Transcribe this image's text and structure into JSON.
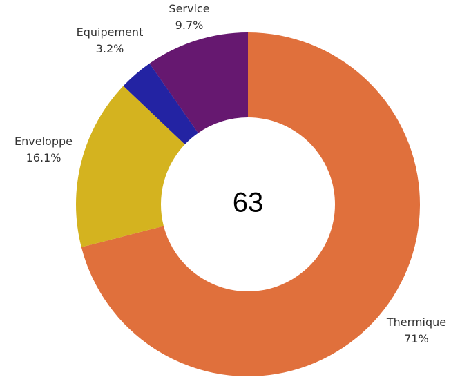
{
  "chart_data": {
    "type": "pie",
    "variant": "donut",
    "center_label": "63",
    "slices": [
      {
        "name": "Thermique",
        "value": 71,
        "label": "71%",
        "color": "#e0703c"
      },
      {
        "name": "Enveloppe",
        "value": 16.1,
        "label": "16.1%",
        "color": "#d4b31f"
      },
      {
        "name": "Equipement",
        "value": 3.2,
        "label": "3.2%",
        "color": "#2323a3"
      },
      {
        "name": "Service",
        "value": 9.7,
        "label": "9.7%",
        "color": "#661870"
      }
    ],
    "legend": "none"
  }
}
